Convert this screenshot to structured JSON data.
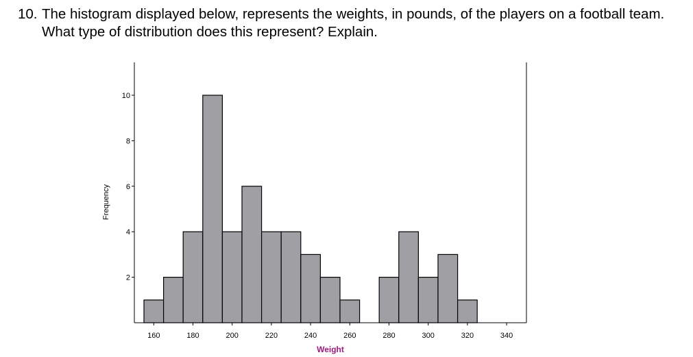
{
  "question": {
    "number": "10.",
    "text": "The histogram displayed below, represents the weights, in pounds, of the players on a football team. What type of distribution does this represent? Explain."
  },
  "chart_data": {
    "type": "bar",
    "subtype": "histogram",
    "title": "",
    "xlabel": "Weight",
    "ylabel": "Frequency",
    "bin_width": 10,
    "bins": [
      {
        "start": 155,
        "end": 165,
        "count": 1
      },
      {
        "start": 165,
        "end": 175,
        "count": 2
      },
      {
        "start": 175,
        "end": 185,
        "count": 4
      },
      {
        "start": 185,
        "end": 195,
        "count": 10
      },
      {
        "start": 195,
        "end": 205,
        "count": 4
      },
      {
        "start": 205,
        "end": 215,
        "count": 6
      },
      {
        "start": 215,
        "end": 225,
        "count": 4
      },
      {
        "start": 225,
        "end": 235,
        "count": 4
      },
      {
        "start": 235,
        "end": 245,
        "count": 3
      },
      {
        "start": 245,
        "end": 255,
        "count": 2
      },
      {
        "start": 255,
        "end": 265,
        "count": 1
      },
      {
        "start": 265,
        "end": 275,
        "count": 0
      },
      {
        "start": 275,
        "end": 285,
        "count": 2
      },
      {
        "start": 285,
        "end": 295,
        "count": 4
      },
      {
        "start": 295,
        "end": 305,
        "count": 2
      },
      {
        "start": 305,
        "end": 315,
        "count": 3
      },
      {
        "start": 315,
        "end": 325,
        "count": 1
      }
    ],
    "xlim": [
      150,
      350
    ],
    "ylim": [
      0,
      11
    ],
    "x_ticks": [
      160,
      180,
      200,
      220,
      240,
      260,
      280,
      300,
      320,
      340
    ],
    "y_ticks": [
      2,
      4,
      6,
      8,
      10
    ],
    "grid": false,
    "colors": {
      "bar_fill": "#a0a0a4",
      "bar_stroke": "#000000",
      "xlabel": "#9b1b7e"
    }
  }
}
